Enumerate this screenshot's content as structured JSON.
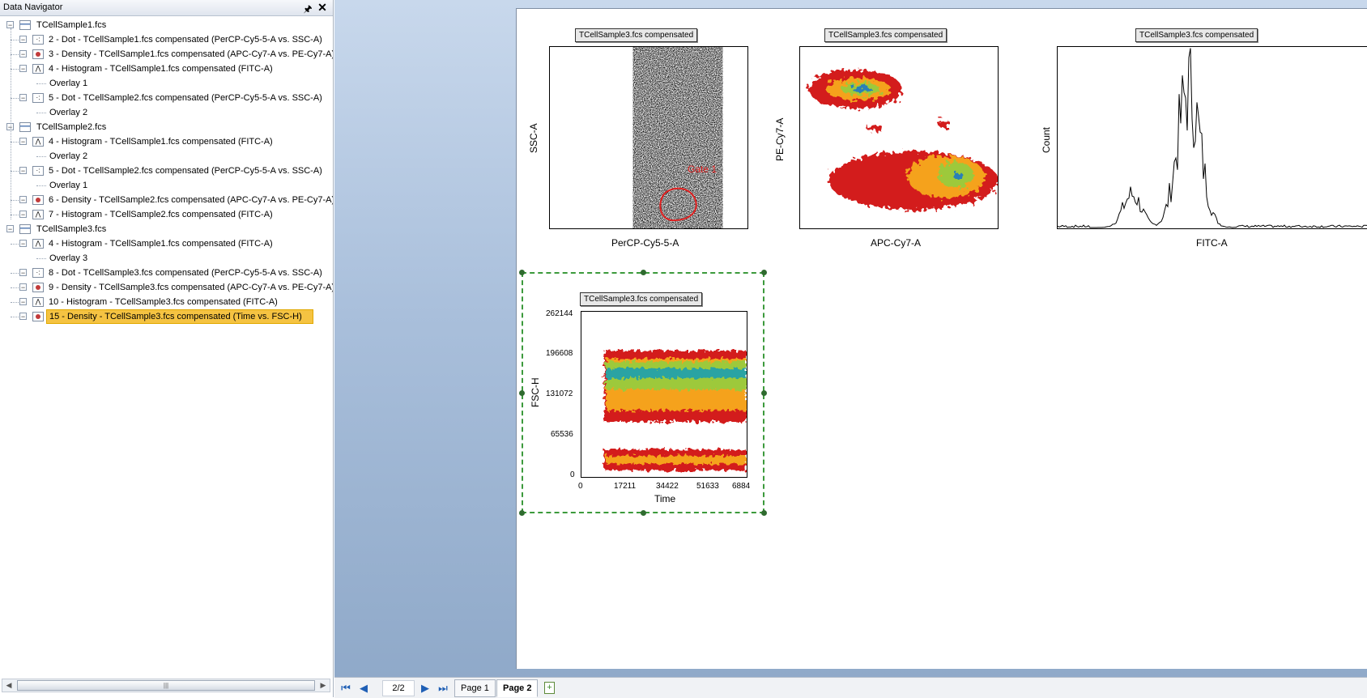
{
  "navigator": {
    "title": "Data Navigator",
    "rows": [
      {
        "label": "TCellSample1.fcs",
        "icon": "fcs",
        "level": 0
      },
      {
        "label": "2 - Dot - TCellSample1.fcs compensated (PerCP-Cy5-5-A vs. SSC-A)",
        "icon": "dot",
        "level": 1
      },
      {
        "label": "3 - Density - TCellSample1.fcs compensated (APC-Cy7-A vs. PE-Cy7-A)",
        "icon": "density",
        "level": 1
      },
      {
        "label": "4 - Histogram - TCellSample1.fcs compensated (FITC-A)",
        "icon": "histogram",
        "level": 1
      },
      {
        "label": "Overlay 1",
        "icon": "",
        "level": 2
      },
      {
        "label": "5 - Dot - TCellSample2.fcs compensated (PerCP-Cy5-5-A vs. SSC-A)",
        "icon": "dot",
        "level": 1
      },
      {
        "label": "Overlay 2",
        "icon": "",
        "level": 2
      },
      {
        "label": "TCellSample2.fcs",
        "icon": "fcs",
        "level": 0
      },
      {
        "label": "4 - Histogram - TCellSample1.fcs compensated (FITC-A)",
        "icon": "histogram",
        "level": 1
      },
      {
        "label": "Overlay 2",
        "icon": "",
        "level": 2
      },
      {
        "label": "5 - Dot - TCellSample2.fcs compensated (PerCP-Cy5-5-A vs. SSC-A)",
        "icon": "dot",
        "level": 1
      },
      {
        "label": "Overlay 1",
        "icon": "",
        "level": 2
      },
      {
        "label": "6 - Density - TCellSample2.fcs compensated (APC-Cy7-A vs. PE-Cy7-A)",
        "icon": "density",
        "level": 1
      },
      {
        "label": "7 - Histogram - TCellSample2.fcs compensated (FITC-A)",
        "icon": "histogram",
        "level": 1
      },
      {
        "label": "TCellSample3.fcs",
        "icon": "fcs",
        "level": 0
      },
      {
        "label": "4 - Histogram - TCellSample1.fcs compensated (FITC-A)",
        "icon": "histogram",
        "level": 1
      },
      {
        "label": "Overlay 3",
        "icon": "",
        "level": 2
      },
      {
        "label": "8 - Dot - TCellSample3.fcs compensated (PerCP-Cy5-5-A vs. SSC-A)",
        "icon": "dot",
        "level": 1
      },
      {
        "label": "9 - Density - TCellSample3.fcs compensated (APC-Cy7-A vs. PE-Cy7-A)",
        "icon": "density",
        "level": 1
      },
      {
        "label": "10 - Histogram - TCellSample3.fcs compensated (FITC-A)",
        "icon": "histogram",
        "level": 1
      },
      {
        "label": "15 - Density - TCellSample3.fcs compensated (Time vs. FSC-H)",
        "icon": "density",
        "level": 1,
        "selected": true
      }
    ]
  },
  "plots": {
    "dot": {
      "title": "TCellSample3.fcs compensated",
      "xlabel": "PerCP-Cy5-5-A",
      "ylabel": "SSC-A",
      "gate_label": "Gate 1"
    },
    "density": {
      "title": "TCellSample3.fcs compensated",
      "xlabel": "APC-Cy7-A",
      "ylabel": "PE-Cy7-A"
    },
    "histogram": {
      "title": "TCellSample3.fcs compensated",
      "xlabel": "FITC-A",
      "ylabel": "Count"
    },
    "time": {
      "title": "TCellSample3.fcs compensated",
      "xlabel": "Time",
      "ylabel": "FSC-H",
      "yticks": [
        "262144",
        "196608",
        "131072",
        "65536",
        "0"
      ],
      "xticks": [
        "0",
        "17211",
        "34422",
        "51633",
        "6884"
      ]
    }
  },
  "tabbar": {
    "counter": "2/2",
    "page1": "Page 1",
    "page2": "Page 2"
  },
  "colors": {
    "accent": "#f5c342",
    "gate": "#e02020",
    "selection": "#3c9a3c"
  }
}
